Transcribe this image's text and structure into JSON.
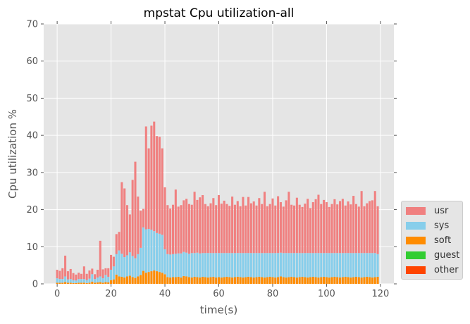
{
  "chart_data": {
    "type": "bar",
    "stacked": true,
    "title": "mpstat Cpu utilization-all",
    "xlabel": "time(s)",
    "ylabel": "Cpu utilization %",
    "xlim": [
      -5,
      125
    ],
    "ylim": [
      0,
      70
    ],
    "xticks": [
      "0",
      "20",
      "40",
      "60",
      "80",
      "100",
      "120"
    ],
    "yticks": [
      "0",
      "10",
      "20",
      "30",
      "40",
      "50",
      "60",
      "70"
    ],
    "grid": true,
    "legend_position": "lower-right-outside",
    "x": [
      0,
      1,
      2,
      3,
      4,
      5,
      6,
      7,
      8,
      9,
      10,
      11,
      12,
      13,
      14,
      15,
      16,
      17,
      18,
      19,
      20,
      21,
      22,
      23,
      24,
      25,
      26,
      27,
      28,
      29,
      30,
      31,
      32,
      33,
      34,
      35,
      36,
      37,
      38,
      39,
      40,
      41,
      42,
      43,
      44,
      45,
      46,
      47,
      48,
      49,
      50,
      51,
      52,
      53,
      54,
      55,
      56,
      57,
      58,
      59,
      60,
      61,
      62,
      63,
      64,
      65,
      66,
      67,
      68,
      69,
      70,
      71,
      72,
      73,
      74,
      75,
      76,
      77,
      78,
      79,
      80,
      81,
      82,
      83,
      84,
      85,
      86,
      87,
      88,
      89,
      90,
      91,
      92,
      93,
      94,
      95,
      96,
      97,
      98,
      99,
      100,
      101,
      102,
      103,
      104,
      105,
      106,
      107,
      108,
      109,
      110,
      111,
      112,
      113,
      114,
      115,
      116,
      117,
      118,
      119
    ],
    "series": [
      {
        "name": "other",
        "color": "#ff4500",
        "values": [
          0,
          0,
          0,
          0,
          0,
          0,
          0,
          0,
          0,
          0,
          0,
          0,
          0,
          0,
          0,
          0,
          0,
          0,
          0,
          0,
          0,
          0,
          0,
          0,
          0,
          0,
          0,
          0,
          0,
          0,
          0,
          0,
          0,
          0,
          0,
          0,
          0,
          0,
          0,
          0,
          0,
          0,
          0,
          0,
          0,
          0,
          0,
          0,
          0,
          0,
          0,
          0,
          0,
          0,
          0,
          0,
          0,
          0,
          0,
          0,
          0,
          0,
          0,
          0,
          0,
          0,
          0,
          0,
          0,
          0,
          0,
          0,
          0,
          0,
          0,
          0,
          0,
          0,
          0,
          0,
          0,
          0,
          0,
          0,
          0,
          0,
          0,
          0,
          0,
          0,
          0,
          0,
          0,
          0,
          0,
          0,
          0,
          0,
          0,
          0,
          0,
          0,
          0,
          0,
          0,
          0,
          0,
          0,
          0,
          0,
          0,
          0,
          0,
          0,
          0,
          0,
          0,
          0,
          0,
          0
        ]
      },
      {
        "name": "guest",
        "color": "#32cd32",
        "values": [
          0,
          0,
          0,
          0,
          0,
          0,
          0,
          0,
          0,
          0,
          0,
          0,
          0,
          0,
          0,
          0,
          0,
          0,
          0,
          0,
          0,
          0,
          0,
          0,
          0,
          0,
          0,
          0,
          0,
          0,
          0,
          0,
          0,
          0,
          0,
          0,
          0,
          0,
          0,
          0,
          0,
          0,
          0,
          0,
          0,
          0,
          0,
          0,
          0,
          0,
          0,
          0,
          0,
          0,
          0,
          0,
          0,
          0,
          0,
          0,
          0,
          0,
          0,
          0,
          0,
          0,
          0,
          0,
          0,
          0,
          0,
          0,
          0,
          0,
          0,
          0,
          0,
          0,
          0,
          0,
          0,
          0,
          0,
          0,
          0,
          0,
          0,
          0,
          0,
          0,
          0,
          0,
          0,
          0,
          0,
          0,
          0,
          0,
          0,
          0,
          0,
          0,
          0,
          0,
          0,
          0,
          0,
          0,
          0,
          0,
          0,
          0,
          0,
          0,
          0,
          0,
          0,
          0,
          0,
          0
        ]
      },
      {
        "name": "soft",
        "color": "#ff8c00",
        "values": [
          0.3,
          0.3,
          0.3,
          0.5,
          0.3,
          0.3,
          0.2,
          0.2,
          0.3,
          0.3,
          0.3,
          0.2,
          0.3,
          0.6,
          0.3,
          0.4,
          0.5,
          0.3,
          0.5,
          0.4,
          1.0,
          1.2,
          2.5,
          2.0,
          1.9,
          1.7,
          2.0,
          2.2,
          1.8,
          1.6,
          2.0,
          2.4,
          3.5,
          3.0,
          3.2,
          3.4,
          3.6,
          3.4,
          3.2,
          3.0,
          2.6,
          1.8,
          1.7,
          1.8,
          1.8,
          1.9,
          1.7,
          2.1,
          2.0,
          1.8,
          1.7,
          1.9,
          1.8,
          1.7,
          1.9,
          1.8,
          1.7,
          1.8,
          1.9,
          1.7,
          1.8,
          1.7,
          1.8,
          1.9,
          1.8,
          1.7,
          1.8,
          1.9,
          1.8,
          1.7,
          1.8,
          1.9,
          1.8,
          1.7,
          1.8,
          1.9,
          1.8,
          1.7,
          1.8,
          1.9,
          1.8,
          1.7,
          1.8,
          2.0,
          1.8,
          1.7,
          1.8,
          1.9,
          1.8,
          1.7,
          1.8,
          1.9,
          1.8,
          1.7,
          1.8,
          1.9,
          1.8,
          1.7,
          1.8,
          1.9,
          1.8,
          1.7,
          1.8,
          1.9,
          1.8,
          1.7,
          1.8,
          1.9,
          1.8,
          1.7,
          1.8,
          1.9,
          1.8,
          1.7,
          1.8,
          1.9,
          1.8,
          1.7,
          1.8,
          1.9
        ]
      },
      {
        "name": "sys",
        "color": "#87ceeb",
        "values": [
          1.2,
          1.0,
          1.0,
          1.5,
          0.9,
          1.0,
          0.8,
          0.7,
          1.0,
          1.0,
          1.0,
          0.8,
          1.1,
          2.0,
          1.0,
          1.3,
          1.5,
          1.2,
          1.9,
          1.5,
          2.8,
          3.5,
          5.5,
          7.0,
          6.2,
          5.5,
          5.7,
          6.3,
          5.7,
          5.3,
          6.0,
          7.3,
          11.7,
          11.7,
          11.6,
          11.2,
          10.6,
          10.3,
          10.3,
          10.2,
          6.7,
          6.2,
          6.2,
          6.2,
          6.3,
          6.3,
          6.5,
          6.5,
          6.4,
          6.3,
          6.6,
          6.4,
          6.6,
          6.5,
          6.4,
          6.5,
          6.6,
          6.5,
          6.4,
          6.6,
          6.5,
          6.6,
          6.5,
          6.4,
          6.5,
          6.6,
          6.5,
          6.4,
          6.5,
          6.6,
          6.5,
          6.4,
          6.5,
          6.6,
          6.5,
          6.4,
          6.5,
          6.6,
          6.5,
          6.4,
          6.5,
          6.6,
          6.5,
          6.4,
          6.5,
          6.6,
          6.5,
          6.4,
          6.5,
          6.6,
          6.5,
          6.4,
          6.5,
          6.6,
          6.5,
          6.4,
          6.5,
          6.6,
          6.5,
          6.4,
          6.5,
          6.6,
          6.5,
          6.4,
          6.5,
          6.6,
          6.5,
          6.4,
          6.5,
          6.6,
          6.5,
          6.4,
          6.5,
          6.6,
          6.5,
          6.4,
          6.5,
          6.6,
          6.5,
          6.1
        ]
      },
      {
        "name": "usr",
        "color": "#f08080",
        "values": [
          2.3,
          2.2,
          2.9,
          5.6,
          2.2,
          2.7,
          1.9,
          1.6,
          1.7,
          1.4,
          3.4,
          1.7,
          2.2,
          1.5,
          1.3,
          2.1,
          9.6,
          2.4,
          1.8,
          2.3,
          4.0,
          2.6,
          5.4,
          5.0,
          19.3,
          18.5,
          13.5,
          10.2,
          20.5,
          26.0,
          15.5,
          10.0,
          5.0,
          27.7,
          21.7,
          28.0,
          29.5,
          26.1,
          26.1,
          23.3,
          16.7,
          13.2,
          12.4,
          13.3,
          17.3,
          12.6,
          13.0,
          13.9,
          14.5,
          13.4,
          13.0,
          16.5,
          14.2,
          15.1,
          15.6,
          13.2,
          12.6,
          13.4,
          14.8,
          12.9,
          15.6,
          13.3,
          14.1,
          13.2,
          12.7,
          15.2,
          13.0,
          14.0,
          12.6,
          15.1,
          12.8,
          15.1,
          13.4,
          13.9,
          12.8,
          14.8,
          13.2,
          16.5,
          12.6,
          13.2,
          14.7,
          12.8,
          15.3,
          13.6,
          12.5,
          14.2,
          16.5,
          13.0,
          12.8,
          14.9,
          13.0,
          12.4,
          13.3,
          14.6,
          12.1,
          13.7,
          14.5,
          15.7,
          13.2,
          14.3,
          13.7,
          12.4,
          13.2,
          14.5,
          13.1,
          14.0,
          14.6,
          12.8,
          13.9,
          13.1,
          15.4,
          13.2,
          12.5,
          16.7,
          12.6,
          13.4,
          14.0,
          14.2,
          16.7,
          12.9
        ]
      }
    ]
  }
}
